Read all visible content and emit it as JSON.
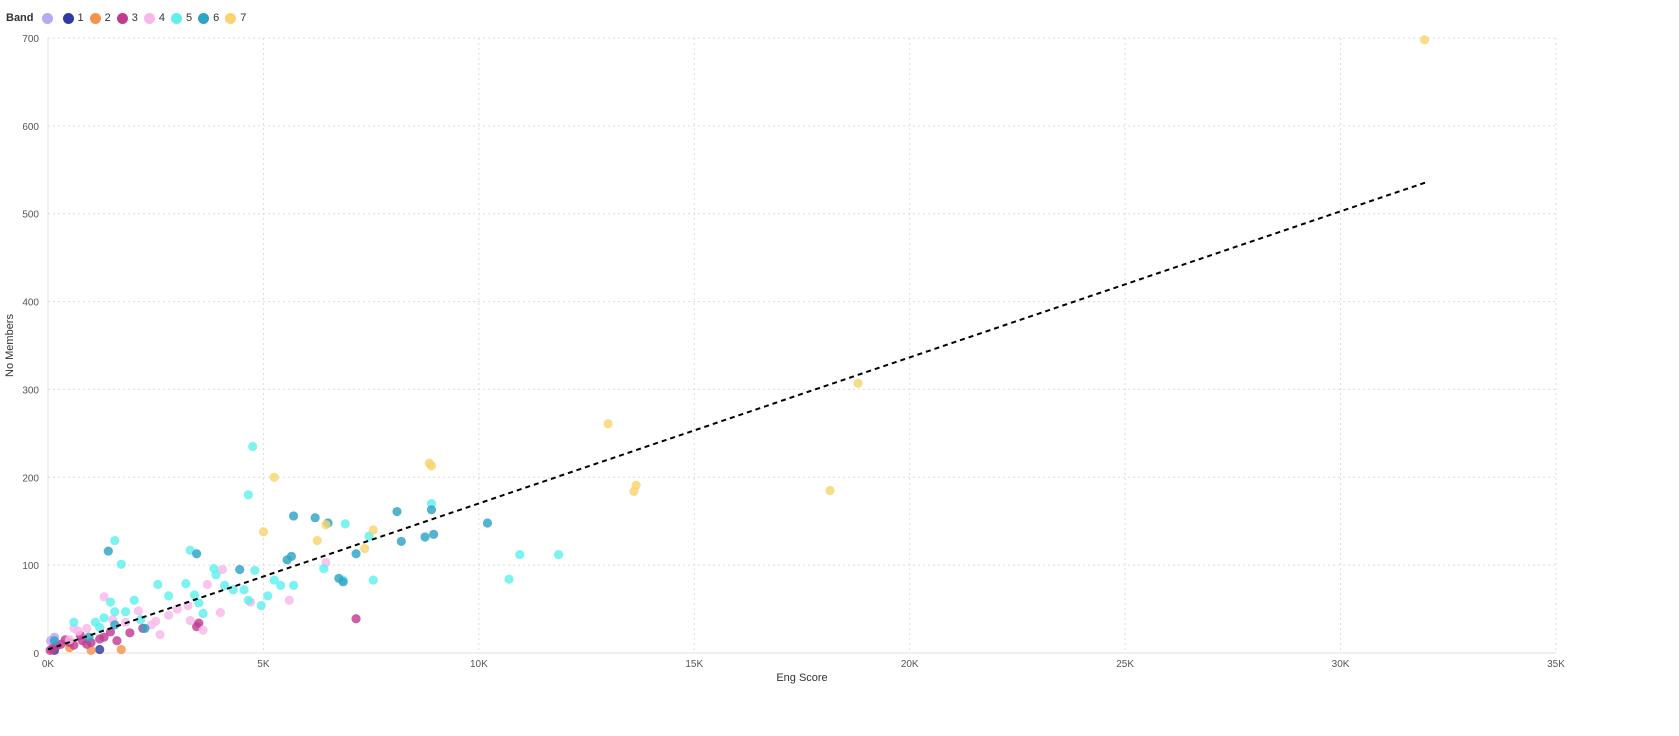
{
  "chart_data": {
    "type": "scatter",
    "title": "",
    "xlabel": "Eng Score",
    "ylabel": "No Members",
    "xlim": [
      0,
      35000
    ],
    "ylim": [
      0,
      700
    ],
    "x_ticks": [
      0,
      5000,
      10000,
      15000,
      20000,
      25000,
      30000,
      35000
    ],
    "x_tick_labels": [
      "0K",
      "5K",
      "10K",
      "15K",
      "20K",
      "25K",
      "30K",
      "35K"
    ],
    "y_ticks": [
      0,
      100,
      200,
      300,
      400,
      500,
      600,
      700
    ],
    "y_tick_labels": [
      "0",
      "100",
      "200",
      "300",
      "400",
      "500",
      "600",
      "700"
    ],
    "grid": true,
    "legend": {
      "title": "Band",
      "placement": "top-left",
      "entries": [
        {
          "label": "",
          "color": "#b7a9f2"
        },
        {
          "label": "1",
          "color": "#2f3ba0"
        },
        {
          "label": "2",
          "color": "#f4944c"
        },
        {
          "label": "3",
          "color": "#c13c92"
        },
        {
          "label": "4",
          "color": "#f8b8ea"
        },
        {
          "label": "5",
          "color": "#5ef0ee"
        },
        {
          "label": "6",
          "color": "#2ea3c6"
        },
        {
          "label": "7",
          "color": "#f7d46e"
        }
      ]
    },
    "trendline": {
      "style": "dashed",
      "color": "#000000",
      "x": [
        0,
        32000
      ],
      "y": [
        4,
        536
      ]
    },
    "series": [
      {
        "name": "",
        "color": "#b7a9f2",
        "points": [
          [
            150,
            18
          ],
          [
            60,
            14
          ]
        ]
      },
      {
        "name": "1",
        "color": "#2f3ba0",
        "points": [
          [
            1200,
            4
          ],
          [
            150,
            3
          ]
        ]
      },
      {
        "name": "2",
        "color": "#f4944c",
        "points": [
          [
            1700,
            4
          ],
          [
            1000,
            3
          ],
          [
            500,
            6
          ]
        ]
      },
      {
        "name": "3",
        "color": "#c13c92",
        "points": [
          [
            7150,
            39
          ],
          [
            3450,
            30
          ],
          [
            3500,
            34
          ],
          [
            1900,
            23
          ],
          [
            1600,
            14
          ],
          [
            1200,
            16
          ],
          [
            1000,
            12
          ],
          [
            900,
            10
          ],
          [
            800,
            14
          ],
          [
            600,
            9
          ],
          [
            500,
            12
          ],
          [
            400,
            15
          ],
          [
            300,
            10
          ],
          [
            200,
            8
          ],
          [
            100,
            5
          ],
          [
            50,
            3
          ],
          [
            1300,
            18
          ],
          [
            1450,
            24
          ],
          [
            2200,
            28
          ],
          [
            750,
            20
          ]
        ]
      },
      {
        "name": "4",
        "color": "#f8b8ea",
        "points": [
          [
            1300,
            64
          ],
          [
            2100,
            48
          ],
          [
            2500,
            36
          ],
          [
            2600,
            21
          ],
          [
            2800,
            43
          ],
          [
            3000,
            50
          ],
          [
            3300,
            37
          ],
          [
            3600,
            26
          ],
          [
            3700,
            78
          ],
          [
            4000,
            46
          ],
          [
            4050,
            95
          ],
          [
            4700,
            58
          ],
          [
            5600,
            60
          ],
          [
            6450,
            103
          ],
          [
            1500,
            38
          ],
          [
            900,
            28
          ],
          [
            700,
            25
          ],
          [
            500,
            15
          ],
          [
            1800,
            35
          ],
          [
            2400,
            32
          ],
          [
            3250,
            54
          ],
          [
            600,
            28
          ]
        ]
      },
      {
        "name": "5",
        "color": "#5ef0ee",
        "points": [
          [
            4750,
            235
          ],
          [
            4650,
            180
          ],
          [
            1550,
            128
          ],
          [
            1700,
            101
          ],
          [
            3300,
            117
          ],
          [
            2000,
            60
          ],
          [
            2550,
            78
          ],
          [
            2800,
            65
          ],
          [
            3200,
            79
          ],
          [
            3400,
            66
          ],
          [
            3500,
            57
          ],
          [
            3850,
            96
          ],
          [
            3900,
            89
          ],
          [
            4100,
            77
          ],
          [
            4300,
            72
          ],
          [
            4550,
            72
          ],
          [
            4650,
            60
          ],
          [
            4800,
            94
          ],
          [
            4950,
            54
          ],
          [
            5100,
            65
          ],
          [
            5250,
            83
          ],
          [
            5400,
            77
          ],
          [
            5700,
            77
          ],
          [
            6400,
            96
          ],
          [
            6900,
            147
          ],
          [
            6850,
            83
          ],
          [
            7450,
            133
          ],
          [
            7550,
            83
          ],
          [
            8900,
            170
          ],
          [
            10700,
            84
          ],
          [
            10950,
            112
          ],
          [
            11850,
            112
          ],
          [
            1450,
            58
          ],
          [
            1550,
            47
          ],
          [
            1800,
            47
          ],
          [
            1200,
            29
          ],
          [
            600,
            35
          ],
          [
            1100,
            35
          ],
          [
            1300,
            40
          ],
          [
            2150,
            38
          ],
          [
            3600,
            45
          ]
        ]
      },
      {
        "name": "6",
        "color": "#2ea3c6",
        "points": [
          [
            1400,
            116
          ],
          [
            3450,
            113
          ],
          [
            4450,
            95
          ],
          [
            5550,
            106
          ],
          [
            5650,
            110
          ],
          [
            5700,
            156
          ],
          [
            6200,
            154
          ],
          [
            6500,
            148
          ],
          [
            6750,
            85
          ],
          [
            6850,
            81
          ],
          [
            7150,
            113
          ],
          [
            8100,
            161
          ],
          [
            8200,
            127
          ],
          [
            8750,
            132
          ],
          [
            8900,
            163
          ],
          [
            8950,
            135
          ],
          [
            10200,
            148
          ],
          [
            2250,
            28
          ],
          [
            1550,
            32
          ],
          [
            150,
            14
          ],
          [
            950,
            18
          ]
        ]
      },
      {
        "name": "7",
        "color": "#f7d46e",
        "points": [
          [
            31950,
            698
          ],
          [
            18800,
            307
          ],
          [
            18150,
            185
          ],
          [
            13000,
            261
          ],
          [
            13650,
            191
          ],
          [
            13600,
            184
          ],
          [
            8850,
            216
          ],
          [
            8900,
            213
          ],
          [
            5250,
            200
          ],
          [
            5000,
            138
          ],
          [
            6250,
            128
          ],
          [
            6450,
            146
          ],
          [
            7350,
            119
          ],
          [
            7550,
            140
          ]
        ]
      }
    ]
  }
}
